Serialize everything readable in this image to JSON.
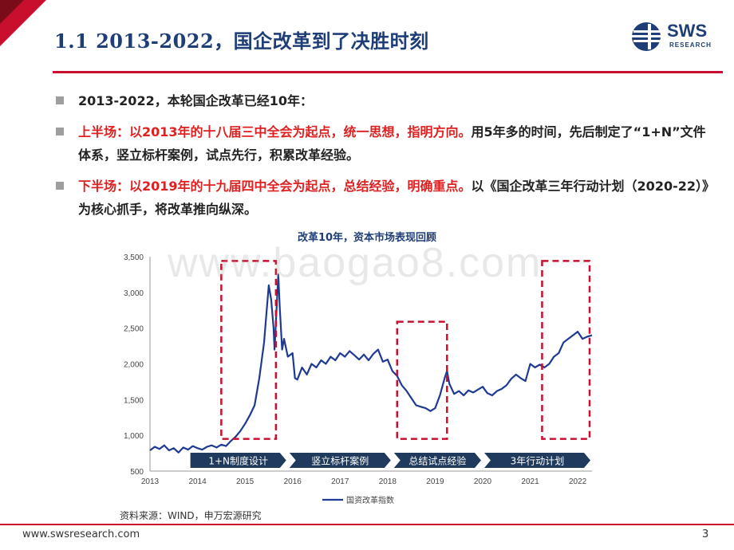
{
  "header": {
    "title": "1.1 2013-2022，国企改革到了决胜时刻"
  },
  "logo": {
    "text": "SWS",
    "sub": "RESEARCH"
  },
  "bullets": [
    {
      "black": "2013-2022，本轮国企改革已经10年：",
      "red": ""
    },
    {
      "red": "上半场：以2013年的十八届三中全会为起点，统一思想，指明方向。",
      "black": "用5年多的时间，先后制定了“1+N”文件体系，竖立标杆案例，试点先行，积累改革经验。"
    },
    {
      "red": "下半场：以2019年的十九届四中全会为起点，总结经验，明确重点。",
      "black": "以《国企改革三年行动计划（2020-22）》为核心抓手，将改革推向纵深。"
    }
  ],
  "watermark": "www.baogao8.com",
  "chart_data": {
    "type": "line",
    "title": "改革10年，资本市场表现回顾",
    "xlabel": "",
    "ylabel": "",
    "ylim": [
      500,
      3500
    ],
    "xlim": [
      2013.0,
      2022.3
    ],
    "y_ticks": [
      "500",
      "1,000",
      "1,500",
      "2,000",
      "2,500",
      "3,000",
      "3,500"
    ],
    "x_ticks": [
      "2013",
      "2014",
      "2015",
      "2016",
      "2017",
      "2018",
      "2019",
      "2020",
      "2021",
      "2022"
    ],
    "series": [
      {
        "name": "国资改革指数",
        "color": "#1f3a93",
        "points": [
          [
            2013.0,
            790
          ],
          [
            2013.1,
            840
          ],
          [
            2013.2,
            810
          ],
          [
            2013.3,
            860
          ],
          [
            2013.4,
            790
          ],
          [
            2013.5,
            820
          ],
          [
            2013.6,
            760
          ],
          [
            2013.7,
            830
          ],
          [
            2013.8,
            800
          ],
          [
            2013.9,
            850
          ],
          [
            2014.0,
            820
          ],
          [
            2014.1,
            800
          ],
          [
            2014.2,
            840
          ],
          [
            2014.3,
            860
          ],
          [
            2014.4,
            830
          ],
          [
            2014.5,
            870
          ],
          [
            2014.6,
            850
          ],
          [
            2014.7,
            920
          ],
          [
            2014.8,
            980
          ],
          [
            2014.9,
            1060
          ],
          [
            2015.0,
            1160
          ],
          [
            2015.1,
            1280
          ],
          [
            2015.2,
            1420
          ],
          [
            2015.3,
            1800
          ],
          [
            2015.4,
            2300
          ],
          [
            2015.45,
            2700
          ],
          [
            2015.5,
            3100
          ],
          [
            2015.55,
            2900
          ],
          [
            2015.6,
            2500
          ],
          [
            2015.62,
            2200
          ],
          [
            2015.65,
            2600
          ],
          [
            2015.7,
            3250
          ],
          [
            2015.73,
            2800
          ],
          [
            2015.78,
            2200
          ],
          [
            2015.82,
            2350
          ],
          [
            2015.9,
            2100
          ],
          [
            2016.0,
            2150
          ],
          [
            2016.05,
            1800
          ],
          [
            2016.1,
            1780
          ],
          [
            2016.2,
            1950
          ],
          [
            2016.3,
            1850
          ],
          [
            2016.4,
            2000
          ],
          [
            2016.5,
            1950
          ],
          [
            2016.6,
            2050
          ],
          [
            2016.7,
            2000
          ],
          [
            2016.8,
            2100
          ],
          [
            2016.9,
            2050
          ],
          [
            2017.0,
            2150
          ],
          [
            2017.1,
            2100
          ],
          [
            2017.2,
            2180
          ],
          [
            2017.3,
            2120
          ],
          [
            2017.4,
            2060
          ],
          [
            2017.5,
            2130
          ],
          [
            2017.6,
            2050
          ],
          [
            2017.7,
            2140
          ],
          [
            2017.8,
            2200
          ],
          [
            2017.9,
            2030
          ],
          [
            2018.0,
            2060
          ],
          [
            2018.1,
            1900
          ],
          [
            2018.2,
            1830
          ],
          [
            2018.3,
            1700
          ],
          [
            2018.4,
            1620
          ],
          [
            2018.5,
            1520
          ],
          [
            2018.6,
            1420
          ],
          [
            2018.7,
            1400
          ],
          [
            2018.8,
            1380
          ],
          [
            2018.9,
            1340
          ],
          [
            2019.0,
            1380
          ],
          [
            2019.1,
            1560
          ],
          [
            2019.2,
            1800
          ],
          [
            2019.25,
            1900
          ],
          [
            2019.3,
            1720
          ],
          [
            2019.4,
            1580
          ],
          [
            2019.5,
            1620
          ],
          [
            2019.6,
            1560
          ],
          [
            2019.7,
            1630
          ],
          [
            2019.8,
            1600
          ],
          [
            2019.9,
            1640
          ],
          [
            2020.0,
            1680
          ],
          [
            2020.1,
            1590
          ],
          [
            2020.2,
            1560
          ],
          [
            2020.3,
            1620
          ],
          [
            2020.4,
            1650
          ],
          [
            2020.5,
            1700
          ],
          [
            2020.6,
            1790
          ],
          [
            2020.7,
            1850
          ],
          [
            2020.8,
            1800
          ],
          [
            2020.9,
            1760
          ],
          [
            2021.0,
            2000
          ],
          [
            2021.1,
            1950
          ],
          [
            2021.2,
            1990
          ],
          [
            2021.3,
            1950
          ],
          [
            2021.4,
            2000
          ],
          [
            2021.5,
            2100
          ],
          [
            2021.6,
            2150
          ],
          [
            2021.7,
            2300
          ],
          [
            2021.8,
            2350
          ],
          [
            2021.9,
            2400
          ],
          [
            2022.0,
            2450
          ],
          [
            2022.1,
            2350
          ],
          [
            2022.2,
            2380
          ],
          [
            2022.3,
            2400
          ]
        ]
      }
    ],
    "phases": [
      {
        "label": "1+N制度设计",
        "start": 2013.85,
        "end": 2015.9
      },
      {
        "label": "竖立标杆案例",
        "start": 2015.9,
        "end": 2018.1
      },
      {
        "label": "总结试点经验",
        "start": 2018.1,
        "end": 2020.0
      },
      {
        "label": "3年行动计划",
        "start": 2020.0,
        "end": 2022.3
      }
    ],
    "highlight_boxes": [
      {
        "x0": 2014.5,
        "x1": 2015.65,
        "y0": 950,
        "y1": 3440
      },
      {
        "x0": 2018.2,
        "x1": 2019.25,
        "y0": 950,
        "y1": 2590
      },
      {
        "x0": 2021.25,
        "x1": 2022.25,
        "y0": 950,
        "y1": 3440
      }
    ],
    "legend_position": "bottom-center"
  },
  "source": "资料来源：WIND，申万宏源研究",
  "footer": {
    "url": "www.swsresearch.com",
    "page": "3"
  }
}
